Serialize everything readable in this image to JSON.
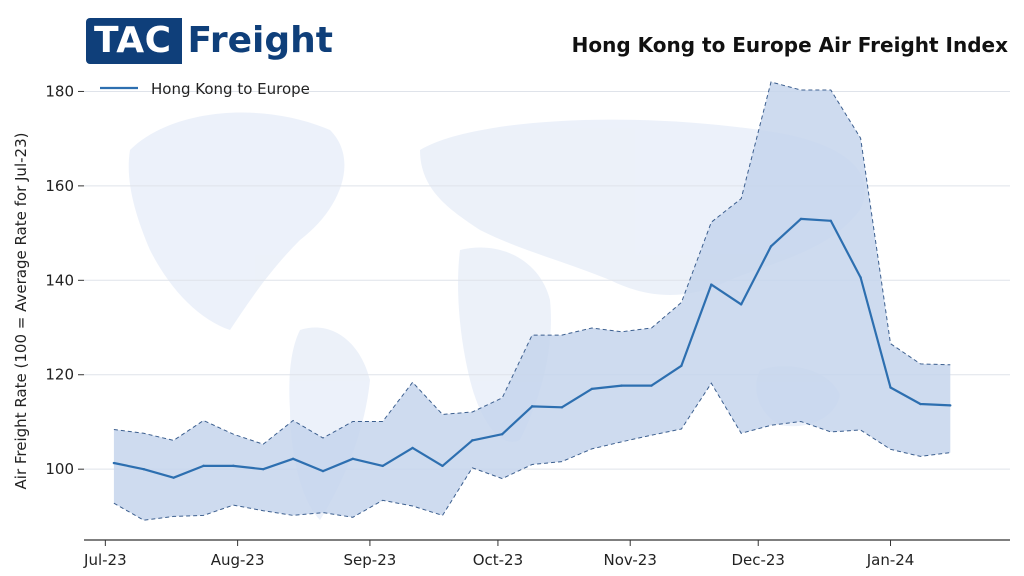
{
  "logo": {
    "part_a": "TAC",
    "part_b": "Freight"
  },
  "colors": {
    "line": "#2d6fb0",
    "band_fill": "#c6d5ec",
    "brand": "#0f3f7a"
  },
  "chart_data": {
    "type": "line",
    "title": "Hong Kong to Europe Air Freight Index",
    "ylabel": "Air Freight Rate (100 = Average Rate for Jul-23)",
    "xlabel": "",
    "ylim": [
      85,
      182
    ],
    "yticks": [
      100,
      120,
      140,
      160,
      180
    ],
    "grid": "horizontal",
    "legend": {
      "placement": "top-left",
      "entries": [
        "Hong Kong to Europe"
      ]
    },
    "x_ticks": [
      {
        "label": "Jul-23",
        "date": "2023-07-01"
      },
      {
        "label": "Aug-23",
        "date": "2023-08-01"
      },
      {
        "label": "Sep-23",
        "date": "2023-09-01"
      },
      {
        "label": "Oct-23",
        "date": "2023-10-01"
      },
      {
        "label": "Nov-23",
        "date": "2023-11-01"
      },
      {
        "label": "Dec-23",
        "date": "2023-12-01"
      },
      {
        "label": "Jan-24",
        "date": "2024-01-01"
      }
    ],
    "x": [
      "2023-07-03",
      "2023-07-10",
      "2023-07-17",
      "2023-07-24",
      "2023-07-31",
      "2023-08-07",
      "2023-08-14",
      "2023-08-21",
      "2023-08-28",
      "2023-09-04",
      "2023-09-11",
      "2023-09-18",
      "2023-09-25",
      "2023-10-02",
      "2023-10-09",
      "2023-10-16",
      "2023-10-23",
      "2023-10-30",
      "2023-11-06",
      "2023-11-13",
      "2023-11-20",
      "2023-11-27",
      "2023-12-04",
      "2023-12-11",
      "2023-12-18",
      "2023-12-25",
      "2024-01-01",
      "2024-01-08",
      "2024-01-15"
    ],
    "series": [
      {
        "name": "Hong Kong to Europe",
        "values": [
          101.3,
          100.0,
          98.2,
          100.7,
          100.7,
          100.0,
          102.2,
          99.6,
          102.2,
          100.7,
          104.5,
          100.7,
          106.1,
          107.4,
          113.3,
          113.1,
          117.0,
          117.7,
          117.7,
          121.9,
          139.1,
          134.9,
          147.2,
          153.0,
          152.6,
          140.6,
          117.3,
          113.8,
          113.5
        ]
      }
    ],
    "band": {
      "upper": [
        108.4,
        107.6,
        106.1,
        110.3,
        107.4,
        105.3,
        110.3,
        106.6,
        110.1,
        110.1,
        118.4,
        111.6,
        112.1,
        115.1,
        128.4,
        128.4,
        129.9,
        129.1,
        129.9,
        135.3,
        152.3,
        157.3,
        182.0,
        180.3,
        180.3,
        170.1,
        126.6,
        122.3,
        122.1
      ],
      "lower": [
        92.8,
        89.2,
        90.0,
        90.2,
        92.4,
        91.2,
        90.2,
        90.8,
        89.8,
        93.4,
        92.2,
        90.2,
        100.3,
        98.0,
        101.0,
        101.6,
        104.3,
        105.8,
        107.2,
        108.5,
        118.2,
        107.6,
        109.3,
        110.1,
        107.9,
        108.3,
        104.2,
        102.7,
        103.5
      ]
    }
  }
}
